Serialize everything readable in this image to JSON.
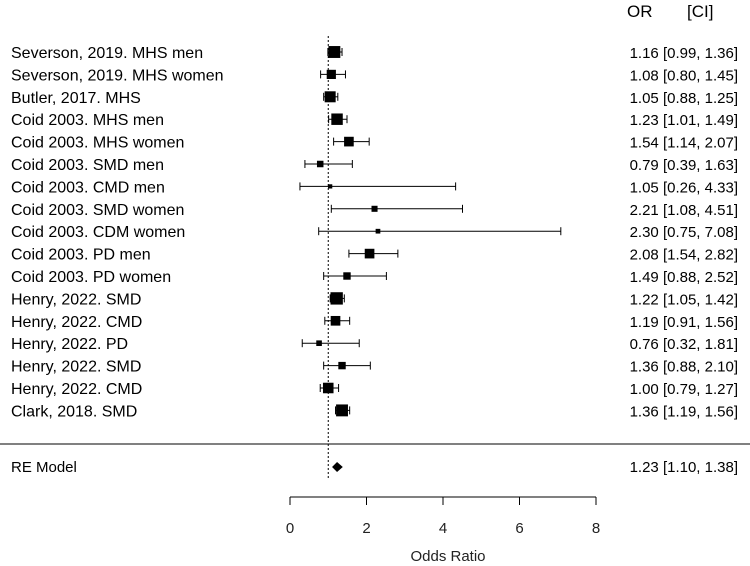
{
  "chart_data": {
    "type": "forest",
    "xlabel": "Odds Ratio",
    "xlim": [
      0,
      8
    ],
    "x_ticks": [
      0,
      2,
      4,
      6,
      8
    ],
    "reference_line": 1,
    "header": {
      "estimate": "OR",
      "interval": "[CI]"
    },
    "studies": [
      {
        "label": "Severson, 2019. MHS men",
        "or": 1.16,
        "lo": 0.99,
        "hi": 1.36,
        "weight": 1.1,
        "text": "1.16 [0.99, 1.36]"
      },
      {
        "label": "Severson, 2019. MHS women",
        "or": 1.08,
        "lo": 0.8,
        "hi": 1.45,
        "weight": 0.8,
        "text": "1.08 [0.80, 1.45]"
      },
      {
        "label": "Butler, 2017. MHS",
        "or": 1.05,
        "lo": 0.88,
        "hi": 1.25,
        "weight": 1.0,
        "text": "1.05 [0.88, 1.25]"
      },
      {
        "label": "Coid 2003. MHS men",
        "or": 1.23,
        "lo": 1.01,
        "hi": 1.49,
        "weight": 1.05,
        "text": "1.23 [1.01, 1.49]"
      },
      {
        "label": "Coid 2003. MHS women",
        "or": 1.54,
        "lo": 1.14,
        "hi": 2.07,
        "weight": 0.85,
        "text": "1.54 [1.14, 2.07]"
      },
      {
        "label": "Coid 2003. SMD men",
        "or": 0.79,
        "lo": 0.39,
        "hi": 1.63,
        "weight": 0.5,
        "text": "0.79 [0.39, 1.63]"
      },
      {
        "label": "Coid 2003. CMD men",
        "or": 1.05,
        "lo": 0.26,
        "hi": 4.33,
        "weight": 0.25,
        "text": "1.05 [0.26, 4.33]"
      },
      {
        "label": "Coid 2003. SMD women",
        "or": 2.21,
        "lo": 1.08,
        "hi": 4.51,
        "weight": 0.45,
        "text": "2.21 [1.08, 4.51]"
      },
      {
        "label": "Coid 2003. CDM women",
        "or": 2.3,
        "lo": 0.75,
        "hi": 7.08,
        "weight": 0.3,
        "text": "2.30 [0.75, 7.08]"
      },
      {
        "label": "Coid 2003. PD men",
        "or": 2.08,
        "lo": 1.54,
        "hi": 2.82,
        "weight": 0.85,
        "text": "2.08 [1.54, 2.82]"
      },
      {
        "label": "Coid 2003. PD women",
        "or": 1.49,
        "lo": 0.88,
        "hi": 2.52,
        "weight": 0.6,
        "text": "1.49 [0.88, 2.52]"
      },
      {
        "label": "Henry, 2022. SMD",
        "or": 1.22,
        "lo": 1.05,
        "hi": 1.42,
        "weight": 1.15,
        "text": "1.22 [1.05, 1.42]"
      },
      {
        "label": "Henry, 2022. CMD",
        "or": 1.19,
        "lo": 0.91,
        "hi": 1.56,
        "weight": 0.85,
        "text": "1.19 [0.91, 1.56]"
      },
      {
        "label": "Henry, 2022. PD",
        "or": 0.76,
        "lo": 0.32,
        "hi": 1.81,
        "weight": 0.4,
        "text": "0.76 [0.32, 1.81]"
      },
      {
        "label": "Henry, 2022. SMD",
        "or": 1.36,
        "lo": 0.88,
        "hi": 2.1,
        "weight": 0.6,
        "text": "1.36 [0.88, 2.10]"
      },
      {
        "label": "Henry, 2022. CMD",
        "or": 1.0,
        "lo": 0.79,
        "hi": 1.27,
        "weight": 0.95,
        "text": "1.00 [0.79, 1.27]"
      },
      {
        "label": "Clark, 2018. SMD",
        "or": 1.36,
        "lo": 1.19,
        "hi": 1.56,
        "weight": 1.1,
        "text": "1.36 [1.19, 1.56]"
      }
    ],
    "summary": {
      "label": "RE Model",
      "or": 1.23,
      "lo": 1.1,
      "hi": 1.38,
      "text": "1.23 [1.10, 1.38]"
    }
  }
}
